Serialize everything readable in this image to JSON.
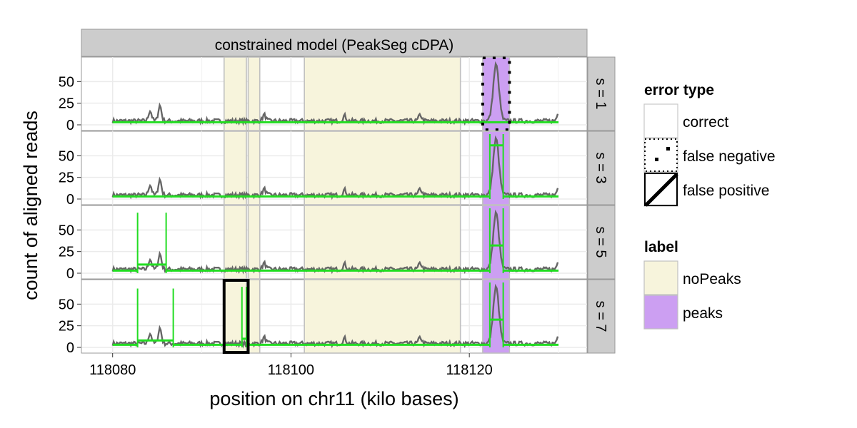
{
  "chart_data": {
    "type": "line",
    "title": "constrained model (PeakSeg cDPA)",
    "xlabel": "position on chr11 (kilo bases)",
    "ylabel": "count of aligned reads",
    "x_ticks": [
      118080,
      118100,
      118120
    ],
    "y_ticks": [
      0,
      25,
      50
    ],
    "xlim": [
      118080,
      118133
    ],
    "ylim": [
      0,
      75
    ],
    "grid": true,
    "legend_position": "right",
    "colors": {
      "coverage": "#666666",
      "segments": "#22dd22",
      "noPeaks": "#f7f4dc",
      "peaks": "#cc9ff2",
      "label_border": "#c0c0c0",
      "strip_bg": "#cccccc"
    },
    "facets": [
      {
        "label": "s = 1",
        "segments": [
          {
            "x0": 118080,
            "x1": 118122.0,
            "y": 3
          },
          {
            "x0": 118122.0,
            "x1": 118124.0,
            "y": 3
          },
          {
            "x0": 118124.0,
            "x1": 118130,
            "y": 3
          }
        ]
      },
      {
        "label": "s = 3",
        "segments": [
          {
            "x0": 118080,
            "x1": 118122.3,
            "y": 3
          },
          {
            "x0": 118122.3,
            "x1": 118123.8,
            "y": 62
          },
          {
            "x0": 118123.8,
            "x1": 118130,
            "y": 3
          }
        ]
      },
      {
        "label": "s = 5",
        "segments": [
          {
            "x0": 118080,
            "x1": 118082.8,
            "y": 3
          },
          {
            "x0": 118082.8,
            "x1": 118086.0,
            "y": 10
          },
          {
            "x0": 118086.0,
            "x1": 118122.3,
            "y": 3
          },
          {
            "x0": 118122.3,
            "x1": 118123.8,
            "y": 32
          },
          {
            "x0": 118123.8,
            "x1": 118130,
            "y": 3
          }
        ]
      },
      {
        "label": "s = 7",
        "segments": [
          {
            "x0": 118080,
            "x1": 118082.8,
            "y": 3
          },
          {
            "x0": 118082.8,
            "x1": 118086.8,
            "y": 8
          },
          {
            "x0": 118086.8,
            "x1": 118094.5,
            "y": 3
          },
          {
            "x0": 118094.5,
            "x1": 118095.0,
            "y": 10
          },
          {
            "x0": 118095.0,
            "x1": 118122.3,
            "y": 3
          },
          {
            "x0": 118122.3,
            "x1": 118123.8,
            "y": 32
          },
          {
            "x0": 118123.8,
            "x1": 118130,
            "y": 3
          }
        ]
      }
    ],
    "labels": [
      {
        "type": "noPeaks",
        "x0": 118092.5,
        "x1": 118095.0
      },
      {
        "type": "noPeaks",
        "x0": 118095.2,
        "x1": 118096.5
      },
      {
        "type": "noPeaks",
        "x0": 118101.5,
        "x1": 118119.0
      },
      {
        "type": "peaks",
        "x0": 118121.5,
        "x1": 118124.5
      }
    ],
    "errors": [
      {
        "facet": "s = 1",
        "type": "false negative",
        "x0": 118121.5,
        "x1": 118124.5
      },
      {
        "facet": "s = 7",
        "type": "false positive",
        "x0": 118092.5,
        "x1": 118095.2
      }
    ],
    "coverage_peaks": [
      {
        "x": 118084.2,
        "y": 12
      },
      {
        "x": 118085.3,
        "y": 18
      },
      {
        "x": 118097.0,
        "y": 7
      },
      {
        "x": 118106.0,
        "y": 6
      },
      {
        "x": 118114.5,
        "y": 7
      },
      {
        "x": 118123.0,
        "y": 65
      },
      {
        "x": 118130.0,
        "y": 9
      }
    ],
    "legend": {
      "error_type": {
        "title": "error type",
        "items": [
          "correct",
          "false negative",
          "false positive"
        ]
      },
      "label": {
        "title": "label",
        "items": [
          "noPeaks",
          "peaks"
        ]
      }
    }
  }
}
